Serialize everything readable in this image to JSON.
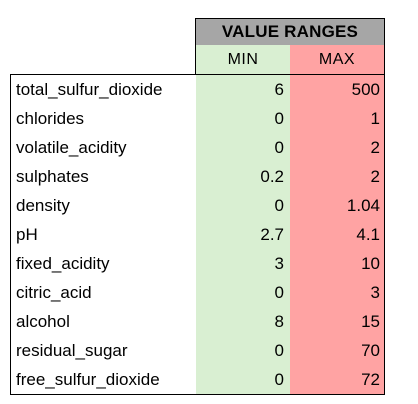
{
  "header": {
    "title": "VALUE RANGES",
    "min_label": "MIN",
    "max_label": "MAX"
  },
  "colors": {
    "title_bg": "#a6a6a6",
    "min_bg": "#d9efd2",
    "max_bg": "#ffa3a3"
  },
  "rows": [
    {
      "name": "total_sulfur_dioxide",
      "min": "6",
      "max": "500"
    },
    {
      "name": "chlorides",
      "min": "0",
      "max": "1"
    },
    {
      "name": "volatile_acidity",
      "min": "0",
      "max": "2"
    },
    {
      "name": "sulphates",
      "min": "0.2",
      "max": "2"
    },
    {
      "name": "density",
      "min": "0",
      "max": "1.04"
    },
    {
      "name": "pH",
      "min": "2.7",
      "max": "4.1"
    },
    {
      "name": "fixed_acidity",
      "min": "3",
      "max": "10"
    },
    {
      "name": "citric_acid",
      "min": "0",
      "max": "3"
    },
    {
      "name": "alcohol",
      "min": "8",
      "max": "15"
    },
    {
      "name": "residual_sugar",
      "min": "0",
      "max": "70"
    },
    {
      "name": "free_sulfur_dioxide",
      "min": "0",
      "max": "72"
    }
  ]
}
